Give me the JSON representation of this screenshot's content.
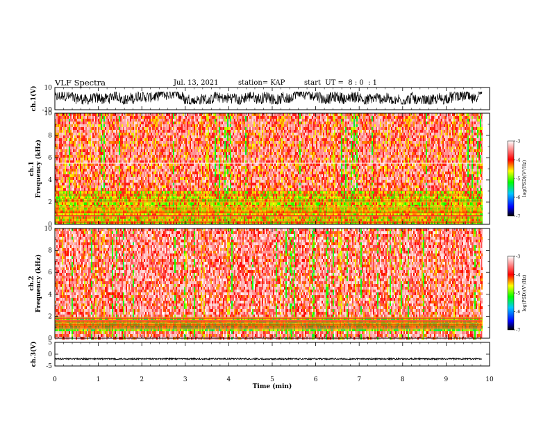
{
  "header": {
    "title": "VLF Spectra",
    "date": "Jul. 13, 2021",
    "station": "station= KAP",
    "start": "start  UT =  8 : 0  : 1"
  },
  "chart_data": [
    {
      "type": "line",
      "panel": "ch1-waveform",
      "ylabel": "ch.1(V)",
      "ylim": [
        -10,
        10
      ],
      "y_ticks": [
        "10",
        "-10"
      ],
      "xlim": [
        0,
        10
      ],
      "data_end_min": 9.83,
      "trace_range_v": [
        -5,
        6
      ]
    },
    {
      "type": "heatmap",
      "panel": "ch1-spectrogram",
      "ylabel": "ch.1\nFrequency  (kHz)",
      "ylim": [
        0,
        10
      ],
      "y_ticks": [
        "0",
        "2",
        "4",
        "6",
        "8",
        "10"
      ],
      "xlim": [
        0,
        10
      ],
      "data_end_min": 9.83,
      "colorbar": {
        "label": "log(PSD)(V²/Hz)",
        "range": [
          -7,
          -3
        ],
        "ticks": [
          "-3",
          "-4",
          "-5",
          "-6",
          "-7"
        ]
      },
      "dominant_level_log_psd": -3.9,
      "low_band_khz": [
        0,
        3.2
      ],
      "low_band_level_log_psd": -4.6,
      "white_line_khz": 5.5
    },
    {
      "type": "heatmap",
      "panel": "ch2-spectrogram",
      "ylabel": "ch.2\nFrequency  (kHz)",
      "ylim": [
        0,
        10
      ],
      "y_ticks": [
        "0",
        "2",
        "4",
        "6",
        "8",
        "10"
      ],
      "xlim": [
        0,
        10
      ],
      "data_end_min": 9.83,
      "colorbar": {
        "label": "log(PSD)(V²/Hz)",
        "range": [
          -7,
          -3
        ],
        "ticks": [
          "-3",
          "-4",
          "-5",
          "-6",
          "-7"
        ]
      },
      "dominant_level_log_psd": -3.7,
      "low_band_khz": [
        0.8,
        2.0
      ],
      "low_band_level_log_psd": -4.9
    },
    {
      "type": "line",
      "panel": "ch3-waveform",
      "ylabel": "ch.3(V)",
      "ylim": [
        -5,
        5
      ],
      "y_ticks": [
        "5",
        "0",
        "-5"
      ],
      "xlim": [
        0,
        10
      ],
      "data_end_min": 9.83,
      "trace_range_v": [
        -2.3,
        -1.7
      ],
      "xlabel": "Time  (min)",
      "x_ticks": [
        "0",
        "1",
        "2",
        "3",
        "4",
        "5",
        "6",
        "7",
        "8",
        "9",
        "10"
      ]
    }
  ]
}
